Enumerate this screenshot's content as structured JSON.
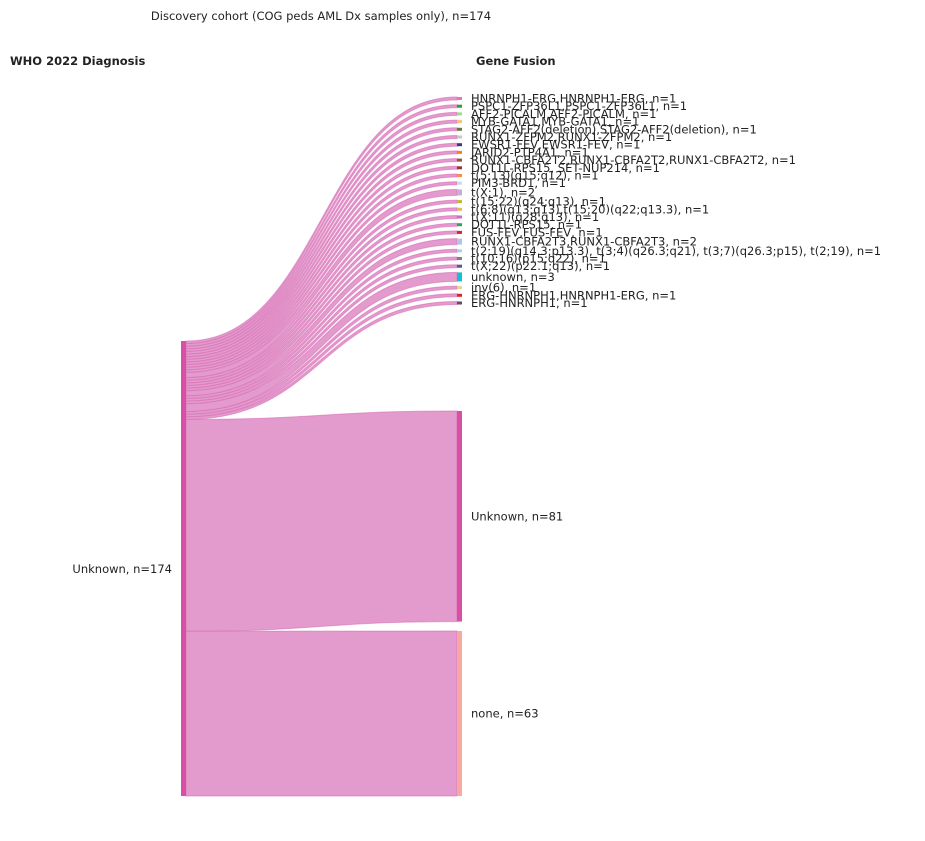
{
  "title": "Discovery cohort (COG peds AML Dx samples only), n=174",
  "left_header": "WHO 2022 Diagnosis",
  "right_header": "Gene Fusion",
  "source": {
    "label": "Unknown, n=174",
    "count": 174,
    "color": "#d94fa6"
  },
  "link_color": "#e08fc6",
  "targets": [
    {
      "label": "HNRNPH1-ERG,HNRNPH1-ERG, n=1",
      "count": 1,
      "color": "#e377c2"
    },
    {
      "label": "PSPC1-ZFP36L1,PSPC1-ZFP36L1, n=1",
      "count": 1,
      "color": "#2ca02c"
    },
    {
      "label": "AFF2-PICALM,AFF2-PICALM, n=1",
      "count": 1,
      "color": "#98df8a"
    },
    {
      "label": "MYB-GATA1,MYB-GATA1, n=1",
      "count": 1,
      "color": "#ffbb78"
    },
    {
      "label": "STAG2-AFF2(deletion),STAG2-AFF2(deletion), n=1",
      "count": 1,
      "color": "#637939"
    },
    {
      "label": "RUNX1-ZFPM2,RUNX1-ZFPM2, n=1",
      "count": 1,
      "color": "#c7c7c7"
    },
    {
      "label": "EWSR1-FEV,EWSR1-FEV, n=1",
      "count": 1,
      "color": "#393b79"
    },
    {
      "label": "JARID2-PTP4A1, n=1",
      "count": 1,
      "color": "#ff7f0e"
    },
    {
      "label": "RUNX1-CBFA2T2,RUNX1-CBFA2T2,RUNX1-CBFA2T2, n=1",
      "count": 1,
      "color": "#8c564b"
    },
    {
      "label": "DOT1L-RPS15, SET-NUP214, n=1",
      "count": 1,
      "color": "#843c39"
    },
    {
      "label": "t(5;13)(q15;q12), n=1",
      "count": 1,
      "color": "#fd8d3c"
    },
    {
      "label": "PIM3-BRD1, n=1",
      "count": 1,
      "color": "#c6dbef"
    },
    {
      "label": "t(X;1), n=2",
      "count": 2,
      "color": "#c5b0d5"
    },
    {
      "label": "t(15;22)(q24;q13), n=1",
      "count": 1,
      "color": "#bcbd22"
    },
    {
      "label": "t(6;8)(q13;q13),t(15;20)(q22;q13.3), n=1",
      "count": 1,
      "color": "#e7ba52"
    },
    {
      "label": "t(X;11)(q28;q13), n=1",
      "count": 1,
      "color": "#ce6dbd"
    },
    {
      "label": "DOT1L-RPS15, n=1",
      "count": 1,
      "color": "#31a354"
    },
    {
      "label": "FUS-FEV,FUS-FEV, n=1",
      "count": 1,
      "color": "#d62728"
    },
    {
      "label": "RUNX1-CBFA2T3,RUNX1-CBFA2T3, n=2",
      "count": 2,
      "color": "#aec7e8"
    },
    {
      "label": "t(2;19)(q14.3;p13.3), t(3;4)(q26.3;q21), t(3;7)(q26.3;p15), t(2;19), n=1",
      "count": 1,
      "color": "#9edae5"
    },
    {
      "label": "t(10;16)(p15;q22), n=1",
      "count": 1,
      "color": "#7f7f7f"
    },
    {
      "label": "t(X;22)(p22.1;q13), n=1",
      "count": 1,
      "color": "#5254a3"
    },
    {
      "label": "unknown, n=3",
      "count": 3,
      "color": "#17becf"
    },
    {
      "label": "inv(6), n=1",
      "count": 1,
      "color": "#dbdb8d"
    },
    {
      "label": "ERG-HNRNPH1,HNRNPH1-ERG, n=1",
      "count": 1,
      "color": "#d62728"
    },
    {
      "label": "ERG-HNRNPH1, n=1",
      "count": 1,
      "color": "#6b486b"
    },
    {
      "label": "Unknown, n=81",
      "count": 81,
      "color": "#d94fa6"
    },
    {
      "label": "none, n=63",
      "count": 63,
      "color": "#f7a8a0"
    }
  ]
}
